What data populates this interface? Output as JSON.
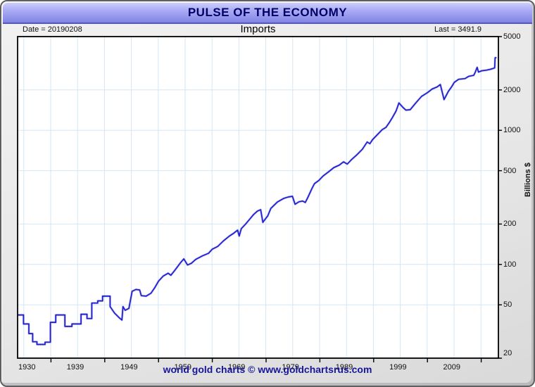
{
  "window": {
    "title": "PULSE OF THE ECONOMY",
    "footer": "world gold charts © www.goldchartsrus.com"
  },
  "header": {
    "date_label": "Date = 20190208",
    "series_title": "Imports",
    "last_label": "Last = 3491.9"
  },
  "colors": {
    "line": "#1d1dcd",
    "line_halo": "rgba(100,100,225,0.35)",
    "grid": "#d6e6f3",
    "plot_border": "#000000",
    "title_text": "#000066",
    "footer_text": "#16169c"
  },
  "chart_data": {
    "type": "line",
    "title": "Imports",
    "date": "20190208",
    "last_value": 3491.9,
    "ylabel": "Billions $",
    "y_scale": "log",
    "ylim": [
      20,
      5000
    ],
    "xlim": [
      1930,
      2019.4
    ],
    "grid": true,
    "legend": "none",
    "y_tick_values": [
      5000,
      2000,
      1000,
      500,
      200,
      100,
      50,
      20
    ],
    "y_grid_values": [
      2000,
      1000,
      500,
      200,
      100,
      50
    ],
    "x_grid": {
      "start": 1931.15,
      "step": 5
    },
    "x_axis_tick_years": [
      1936.2,
      1946.2,
      1956.2,
      1966.2,
      1976.2,
      1986.2,
      1996.2,
      2006.2,
      2016.2
    ],
    "x_label_years": [
      1930,
      1939,
      1949,
      1959,
      1969,
      1979,
      1989,
      1999,
      2009
    ],
    "x_tick_labels": [
      "1930",
      "1939",
      "1949",
      "1959",
      "1969",
      "1979",
      "1989",
      "1999",
      "2009"
    ],
    "series": [
      {
        "name": "Imports",
        "points": [
          [
            1930.0,
            42
          ],
          [
            1931.1,
            42
          ],
          [
            1931.1,
            36
          ],
          [
            1932.1,
            36
          ],
          [
            1932.1,
            30.5
          ],
          [
            1932.8,
            30.5
          ],
          [
            1932.8,
            26.5
          ],
          [
            1933.6,
            26.5
          ],
          [
            1933.6,
            25.3
          ],
          [
            1935.1,
            25.3
          ],
          [
            1935.1,
            26.3
          ],
          [
            1936.1,
            26.3
          ],
          [
            1936.1,
            37
          ],
          [
            1937.1,
            37
          ],
          [
            1937.1,
            42
          ],
          [
            1938.8,
            42
          ],
          [
            1938.8,
            34.5
          ],
          [
            1940.1,
            34.5
          ],
          [
            1940.1,
            36
          ],
          [
            1941.8,
            36
          ],
          [
            1941.8,
            42.5
          ],
          [
            1942.9,
            42.5
          ],
          [
            1942.9,
            39.5
          ],
          [
            1943.8,
            39.5
          ],
          [
            1943.8,
            51.5
          ],
          [
            1944.9,
            51.5
          ],
          [
            1944.9,
            53.5
          ],
          [
            1945.8,
            53.5
          ],
          [
            1945.8,
            58
          ],
          [
            1947.2,
            58
          ],
          [
            1947.2,
            48.5
          ],
          [
            1948.0,
            43.5
          ],
          [
            1948.9,
            40
          ],
          [
            1949.4,
            38.5
          ],
          [
            1949.6,
            48.5
          ],
          [
            1950.0,
            45.5
          ],
          [
            1950.7,
            47
          ],
          [
            1951.3,
            63
          ],
          [
            1952.0,
            65
          ],
          [
            1952.7,
            64.5
          ],
          [
            1953.0,
            58.5
          ],
          [
            1953.9,
            58
          ],
          [
            1954.8,
            61
          ],
          [
            1955.5,
            67
          ],
          [
            1956.2,
            75
          ],
          [
            1957.1,
            82
          ],
          [
            1958.0,
            86
          ],
          [
            1958.5,
            83
          ],
          [
            1959.2,
            90
          ],
          [
            1960.3,
            103
          ],
          [
            1960.9,
            110
          ],
          [
            1961.6,
            99
          ],
          [
            1962.3,
            102
          ],
          [
            1963.1,
            109
          ],
          [
            1964.4,
            116
          ],
          [
            1965.5,
            121
          ],
          [
            1966.2,
            130
          ],
          [
            1967.2,
            136
          ],
          [
            1968.3,
            150
          ],
          [
            1969.4,
            163
          ],
          [
            1970.1,
            170
          ],
          [
            1970.9,
            180
          ],
          [
            1971.2,
            163
          ],
          [
            1971.6,
            185
          ],
          [
            1972.4,
            200
          ],
          [
            1973.1,
            216
          ],
          [
            1973.9,
            236
          ],
          [
            1974.6,
            250
          ],
          [
            1975.2,
            256
          ],
          [
            1975.6,
            206
          ],
          [
            1975.9,
            214
          ],
          [
            1976.5,
            230
          ],
          [
            1977.1,
            262
          ],
          [
            1978.3,
            292
          ],
          [
            1979.5,
            311
          ],
          [
            1980.3,
            318
          ],
          [
            1981.1,
            322
          ],
          [
            1981.6,
            281
          ],
          [
            1982.3,
            293
          ],
          [
            1983.0,
            297
          ],
          [
            1983.5,
            290
          ],
          [
            1984.0,
            318
          ],
          [
            1984.7,
            366
          ],
          [
            1985.2,
            400
          ],
          [
            1986.0,
            422
          ],
          [
            1986.8,
            456
          ],
          [
            1987.8,
            490
          ],
          [
            1988.8,
            527
          ],
          [
            1989.8,
            550
          ],
          [
            1990.6,
            582
          ],
          [
            1991.3,
            560
          ],
          [
            1992.1,
            605
          ],
          [
            1993.0,
            652
          ],
          [
            1994.1,
            722
          ],
          [
            1995.0,
            818
          ],
          [
            1995.5,
            795
          ],
          [
            1996.0,
            852
          ],
          [
            1997.0,
            938
          ],
          [
            1997.8,
            1012
          ],
          [
            1998.5,
            1052
          ],
          [
            1999.1,
            1140
          ],
          [
            1999.7,
            1248
          ],
          [
            2000.4,
            1400
          ],
          [
            2000.9,
            1600
          ],
          [
            2001.6,
            1490
          ],
          [
            2002.2,
            1415
          ],
          [
            2003.0,
            1425
          ],
          [
            2004.0,
            1592
          ],
          [
            2005.1,
            1790
          ],
          [
            2006.2,
            1908
          ],
          [
            2007.1,
            2035
          ],
          [
            2008.0,
            2105
          ],
          [
            2008.6,
            2195
          ],
          [
            2009.3,
            1695
          ],
          [
            2010.1,
            1950
          ],
          [
            2010.7,
            2110
          ],
          [
            2011.2,
            2280
          ],
          [
            2012.0,
            2400
          ],
          [
            2013.2,
            2430
          ],
          [
            2013.9,
            2530
          ],
          [
            2014.8,
            2570
          ],
          [
            2015.1,
            2710
          ],
          [
            2015.45,
            2950
          ],
          [
            2015.7,
            2720
          ],
          [
            2016.3,
            2780
          ],
          [
            2017.2,
            2810
          ],
          [
            2017.9,
            2850
          ],
          [
            2018.5,
            2900
          ],
          [
            2018.7,
            2920
          ],
          [
            2018.78,
            3470
          ],
          [
            2019.05,
            3491.9
          ]
        ]
      }
    ]
  }
}
